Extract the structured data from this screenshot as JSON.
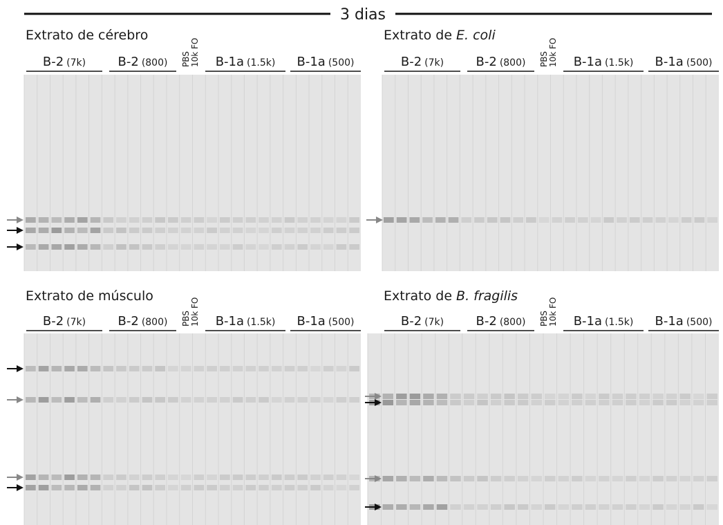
{
  "header": {
    "title": "3 dias"
  },
  "panels": [
    {
      "title": "Extrato de",
      "subject": "cérebro",
      "subject_italic": false,
      "groups": [
        {
          "name": "B-2",
          "note": "(7k)"
        },
        {
          "name": "B-2",
          "note": "(800)"
        },
        {
          "name": "B-1a",
          "note": "(1.5k)"
        },
        {
          "name": "B-1a",
          "note": "(500)"
        }
      ],
      "controls": [
        "PBS",
        "10k FO"
      ]
    },
    {
      "title": "Extrato de",
      "subject": "E. coli",
      "subject_italic": true,
      "groups": [
        {
          "name": "B-2",
          "note": "(7k)"
        },
        {
          "name": "B-2",
          "note": "(800)"
        },
        {
          "name": "B-1a",
          "note": "(1.5k)"
        },
        {
          "name": "B-1a",
          "note": "(500)"
        }
      ],
      "controls": [
        "PBS",
        "10k FO"
      ]
    },
    {
      "title": "Extrato de",
      "subject": "músculo",
      "subject_italic": false,
      "groups": [
        {
          "name": "B-2",
          "note": "(7k)"
        },
        {
          "name": "B-2",
          "note": "(800)"
        },
        {
          "name": "B-1a",
          "note": "(1.5k)"
        },
        {
          "name": "B-1a",
          "note": "(500)"
        }
      ],
      "controls": [
        "PBS",
        "10k FO"
      ]
    },
    {
      "title": "Extrato de",
      "subject": "B. fragilis",
      "subject_italic": true,
      "groups": [
        {
          "name": "B-2",
          "note": "(7k)"
        },
        {
          "name": "B-2",
          "note": "(800)"
        },
        {
          "name": "B-1a",
          "note": "(1.5k)"
        },
        {
          "name": "B-1a",
          "note": "(500)"
        }
      ],
      "controls": [
        "PBS",
        "10k FO"
      ]
    }
  ]
}
